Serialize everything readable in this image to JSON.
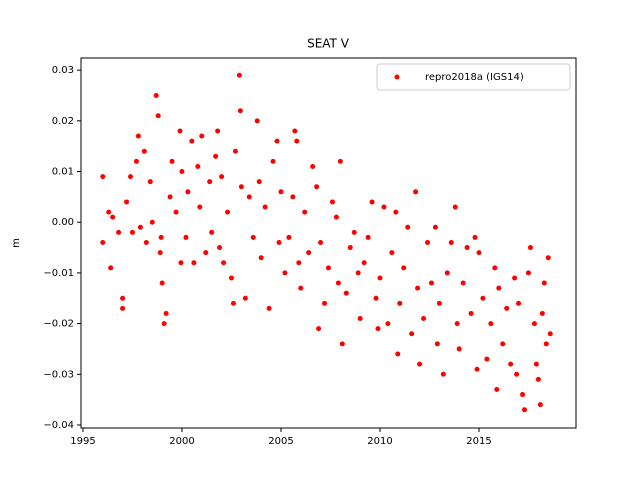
{
  "chart_data": {
    "type": "scatter",
    "title": "SEAT V",
    "y_label": "m",
    "xlim": [
      1994.9,
      2019.9
    ],
    "xticks": [
      1995,
      2000,
      2005,
      2010,
      2015
    ],
    "ylim": [
      -0.0406,
      0.0324
    ],
    "yticks": [
      {
        "value": -0.04,
        "label": "−0.04"
      },
      {
        "value": -0.03,
        "label": "−0.03"
      },
      {
        "value": -0.02,
        "label": "−0.02"
      },
      {
        "value": -0.01,
        "label": "−0.01"
      },
      {
        "value": 0,
        "label": "0.00"
      },
      0.01,
      0.02,
      0.03
    ],
    "legend": "upper right",
    "x": [
      1996.0,
      1996.0,
      1996.3,
      1996.4,
      1996.5,
      1996.8,
      1997.0,
      1997.0,
      1997.2,
      1997.4,
      1997.5,
      1997.7,
      1997.8,
      1997.9,
      1998.1,
      1998.2,
      1998.4,
      1998.5,
      1998.7,
      1998.8,
      1998.9,
      1998.95,
      1999.0,
      1999.1,
      1999.2,
      1999.4,
      1999.5,
      1999.7,
      1999.9,
      1999.95,
      2000.0,
      2000.2,
      2000.3,
      2000.5,
      2000.6,
      2000.8,
      2000.9,
      2001.0,
      2001.2,
      2001.4,
      2001.5,
      2001.7,
      2001.8,
      2001.9,
      2002.0,
      2002.1,
      2002.3,
      2002.5,
      2002.6,
      2002.7,
      2002.9,
      2002.95,
      2003.0,
      2003.2,
      2003.4,
      2003.6,
      2003.8,
      2003.9,
      2004.0,
      2004.2,
      2004.4,
      2004.6,
      2004.8,
      2004.9,
      2005.0,
      2005.2,
      2005.4,
      2005.6,
      2005.7,
      2005.8,
      2005.9,
      2006.0,
      2006.2,
      2006.4,
      2006.6,
      2006.8,
      2006.9,
      2007.0,
      2007.2,
      2007.4,
      2007.6,
      2007.8,
      2007.9,
      2008.0,
      2008.1,
      2008.3,
      2008.5,
      2008.7,
      2008.9,
      2009.0,
      2009.2,
      2009.4,
      2009.6,
      2009.8,
      2009.9,
      2010.0,
      2010.2,
      2010.4,
      2010.6,
      2010.8,
      2010.9,
      2011.0,
      2011.2,
      2011.4,
      2011.6,
      2011.8,
      2011.9,
      2012.0,
      2012.2,
      2012.4,
      2012.6,
      2012.8,
      2012.9,
      2013.0,
      2013.2,
      2013.4,
      2013.6,
      2013.8,
      2013.9,
      2014.0,
      2014.2,
      2014.4,
      2014.6,
      2014.8,
      2014.9,
      2015.0,
      2015.2,
      2015.4,
      2015.6,
      2015.8,
      2015.9,
      2016.0,
      2016.2,
      2016.4,
      2016.6,
      2016.8,
      2016.9,
      2017.0,
      2017.2,
      2017.3,
      2017.5,
      2017.6,
      2017.8,
      2017.9,
      2018.0,
      2018.1,
      2018.2,
      2018.3,
      2018.4,
      2018.5,
      2018.6
    ],
    "series": [
      {
        "name": "repro2018a (IGS14)",
        "color": "#ff0000",
        "values": [
          0.009,
          -0.004,
          0.002,
          -0.009,
          0.001,
          -0.002,
          -0.015,
          -0.017,
          0.004,
          0.009,
          -0.002,
          0.012,
          0.017,
          -0.001,
          0.014,
          -0.004,
          0.008,
          0.0,
          0.025,
          0.021,
          -0.006,
          -0.003,
          -0.012,
          -0.02,
          -0.018,
          0.005,
          0.012,
          0.002,
          0.018,
          -0.008,
          0.01,
          -0.003,
          0.006,
          0.016,
          -0.008,
          0.011,
          0.003,
          0.017,
          -0.006,
          0.008,
          -0.002,
          0.013,
          0.018,
          -0.005,
          0.009,
          -0.008,
          0.002,
          -0.011,
          -0.016,
          0.014,
          0.029,
          0.022,
          0.007,
          -0.015,
          0.005,
          -0.003,
          0.02,
          0.008,
          -0.007,
          0.003,
          -0.017,
          0.012,
          0.016,
          -0.004,
          0.006,
          -0.01,
          -0.003,
          0.005,
          0.018,
          0.016,
          -0.008,
          -0.013,
          0.002,
          -0.006,
          0.011,
          0.007,
          -0.021,
          -0.004,
          -0.016,
          -0.009,
          0.004,
          0.001,
          -0.012,
          0.012,
          -0.024,
          -0.014,
          -0.005,
          -0.002,
          -0.01,
          -0.019,
          -0.008,
          -0.003,
          0.004,
          -0.015,
          -0.021,
          -0.011,
          0.003,
          -0.02,
          -0.006,
          0.002,
          -0.026,
          -0.016,
          -0.009,
          -0.001,
          -0.022,
          0.006,
          -0.013,
          -0.028,
          -0.019,
          -0.004,
          -0.012,
          -0.001,
          -0.024,
          -0.016,
          -0.03,
          -0.01,
          -0.004,
          0.003,
          -0.02,
          -0.025,
          -0.012,
          -0.005,
          -0.018,
          -0.003,
          -0.029,
          -0.006,
          -0.015,
          -0.027,
          -0.02,
          -0.009,
          -0.033,
          -0.013,
          -0.024,
          -0.017,
          -0.028,
          -0.011,
          -0.03,
          -0.016,
          -0.034,
          -0.037,
          -0.01,
          -0.005,
          -0.02,
          -0.028,
          -0.031,
          -0.036,
          -0.018,
          -0.012,
          -0.024,
          -0.007,
          -0.022
        ]
      }
    ]
  }
}
